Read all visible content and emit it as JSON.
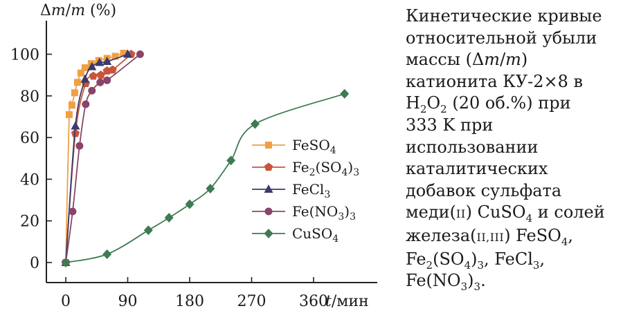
{
  "chart_data": {
    "type": "line",
    "ylabel": "Δm/m (%)",
    "xlabel": "t/мин",
    "xlim": [
      -10,
      460
    ],
    "ylim": [
      -10,
      110
    ],
    "xticks": [
      0,
      90,
      180,
      270,
      360
    ],
    "yticks": [
      0,
      20,
      40,
      60,
      80,
      100
    ],
    "legend_position": "center",
    "series": [
      {
        "name": "FeSO4",
        "label_main": "FeSO",
        "label_sub": "4",
        "color": "#f0a043",
        "marker": "square",
        "x": [
          0,
          5,
          9,
          13,
          17,
          22,
          28,
          37,
          48,
          60,
          72,
          84
        ],
        "y": [
          0,
          71,
          75.5,
          81.5,
          86.5,
          91,
          93.5,
          95.5,
          97,
          98,
          99,
          100.5
        ]
      },
      {
        "name": "Fe2(SO4)3",
        "label_main": "Fe",
        "label_sub": "2",
        "label_main2": "(SO",
        "label_sub2": "4",
        "label_main3": ")",
        "label_sub3": "3",
        "color": "#c8553a",
        "marker": "pentagon",
        "x": [
          0,
          14,
          29,
          40,
          51,
          60,
          68,
          95
        ],
        "y": [
          0,
          62,
          86,
          89.5,
          90,
          92,
          92.5,
          100
        ]
      },
      {
        "name": "FeCl3",
        "label_main": "FeCl",
        "label_sub": "3",
        "color": "#3a3a6e",
        "marker": "triangle",
        "x": [
          0,
          14,
          28,
          38,
          49,
          60,
          90
        ],
        "y": [
          0,
          65.5,
          88,
          94,
          96,
          96.5,
          100
        ]
      },
      {
        "name": "Fe(NO3)3",
        "label_main": "Fe(NO",
        "label_sub": "3",
        "label_main2": ")",
        "label_sub2": "3",
        "color": "#8a4468",
        "marker": "circle",
        "x": [
          0,
          10,
          20,
          29,
          38,
          50,
          60,
          108
        ],
        "y": [
          0,
          24.5,
          56,
          76,
          82.5,
          86.5,
          87.5,
          100
        ]
      },
      {
        "name": "CuSO4",
        "label_main": "CuSO",
        "label_sub": "4",
        "color": "#3e7a52",
        "marker": "diamond",
        "x": [
          0,
          60,
          120,
          150,
          180,
          210,
          240,
          275,
          405
        ],
        "y": [
          0,
          4,
          15.5,
          21.5,
          28,
          35.5,
          49,
          66.5,
          81
        ]
      }
    ]
  },
  "caption": {
    "l1": "Кинетические кривые",
    "l2": "относительной убыли",
    "l3a": "массы (Δ",
    "l3b": "m",
    "l3c": "/",
    "l3d": "m",
    "l3e": ")",
    "l4": "катионита КУ-2×8 в",
    "l5a": "H",
    "l5b": "2",
    "l5c": "O",
    "l5d": "2",
    "l5e": " (20 об.%) при",
    "l6": "333 K при",
    "l7": "использовании",
    "l8": "каталитических",
    "l9": "добавок сульфата",
    "l10a": "меди(",
    "l10b": "II",
    "l10c": ") CuSO",
    "l10d": "4",
    "l10e": " и солей",
    "l11a": "железа(",
    "l11b": "II,III",
    "l11c": ") FeSO",
    "l11d": "4",
    "l11e": ",",
    "l12a": "Fe",
    "l12b": "2",
    "l12c": "(SO",
    "l12d": "4",
    "l12e": ")",
    "l12f": "3",
    "l12g": ", FeCl",
    "l12h": "3",
    "l12i": ",",
    "l13a": "Fe(NO",
    "l13b": "3",
    "l13c": ")",
    "l13d": "3",
    "l13e": "."
  }
}
